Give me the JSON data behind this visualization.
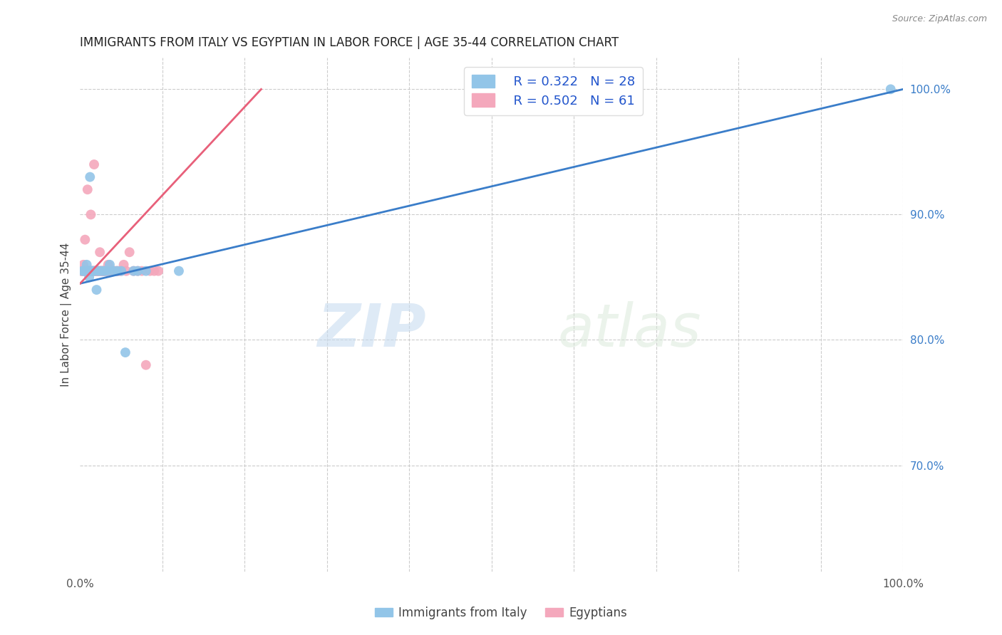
{
  "title": "IMMIGRANTS FROM ITALY VS EGYPTIAN IN LABOR FORCE | AGE 35-44 CORRELATION CHART",
  "source": "Source: ZipAtlas.com",
  "ylabel": "In Labor Force | Age 35-44",
  "xlim": [
    0.0,
    1.0
  ],
  "ylim": [
    0.615,
    1.025
  ],
  "watermark_zip": "ZIP",
  "watermark_atlas": "atlas",
  "legend_italy_R": "R = 0.322",
  "legend_italy_N": "N = 28",
  "legend_egypt_R": "R = 0.502",
  "legend_egypt_N": "N = 61",
  "italy_color": "#92C5E8",
  "egypt_color": "#F4A8BC",
  "italy_line_color": "#3A7DC9",
  "egypt_line_color": "#E8607A",
  "italy_x": [
    0.003,
    0.012,
    0.004,
    0.006,
    0.008,
    0.009,
    0.01,
    0.011,
    0.013,
    0.014,
    0.016,
    0.018,
    0.02,
    0.022,
    0.025,
    0.028,
    0.03,
    0.033,
    0.036,
    0.04,
    0.045,
    0.05,
    0.055,
    0.065,
    0.07,
    0.08,
    0.12,
    0.985
  ],
  "italy_y": [
    0.855,
    0.93,
    0.855,
    0.855,
    0.86,
    0.855,
    0.855,
    0.85,
    0.855,
    0.855,
    0.855,
    0.855,
    0.84,
    0.855,
    0.855,
    0.855,
    0.855,
    0.855,
    0.86,
    0.855,
    0.855,
    0.855,
    0.79,
    0.855,
    0.855,
    0.855,
    0.855,
    1.0
  ],
  "egypt_x": [
    0.001,
    0.002,
    0.003,
    0.004,
    0.005,
    0.006,
    0.007,
    0.008,
    0.009,
    0.01,
    0.011,
    0.012,
    0.013,
    0.014,
    0.015,
    0.016,
    0.017,
    0.018,
    0.019,
    0.02,
    0.021,
    0.022,
    0.023,
    0.024,
    0.025,
    0.026,
    0.027,
    0.028,
    0.029,
    0.03,
    0.032,
    0.034,
    0.035,
    0.037,
    0.039,
    0.041,
    0.043,
    0.045,
    0.047,
    0.05,
    0.053,
    0.056,
    0.06,
    0.065,
    0.07,
    0.075,
    0.08,
    0.085,
    0.09,
    0.095,
    0.01,
    0.012,
    0.015,
    0.018,
    0.02,
    0.022,
    0.025,
    0.028,
    0.032,
    0.036,
    0.04
  ],
  "egypt_y": [
    0.855,
    0.855,
    0.855,
    0.86,
    0.855,
    0.88,
    0.855,
    0.855,
    0.92,
    0.855,
    0.855,
    0.855,
    0.9,
    0.855,
    0.855,
    0.855,
    0.94,
    0.855,
    0.855,
    0.855,
    0.855,
    0.855,
    0.855,
    0.87,
    0.855,
    0.855,
    0.855,
    0.855,
    0.855,
    0.855,
    0.855,
    0.86,
    0.855,
    0.855,
    0.855,
    0.855,
    0.855,
    0.855,
    0.855,
    0.855,
    0.86,
    0.855,
    0.87,
    0.855,
    0.855,
    0.855,
    0.78,
    0.855,
    0.855,
    0.855,
    0.855,
    0.855,
    0.855,
    0.855,
    0.855,
    0.855,
    0.855,
    0.855,
    0.855,
    0.855,
    0.855
  ],
  "grid_color": "#CCCCCC",
  "bg_color": "#FFFFFF",
  "italy_line_x0": 0.0,
  "italy_line_y0": 0.845,
  "italy_line_x1": 1.0,
  "italy_line_y1": 1.0,
  "egypt_line_x0": 0.0,
  "egypt_line_y0": 0.845,
  "egypt_line_x1": 0.22,
  "egypt_line_y1": 1.0
}
